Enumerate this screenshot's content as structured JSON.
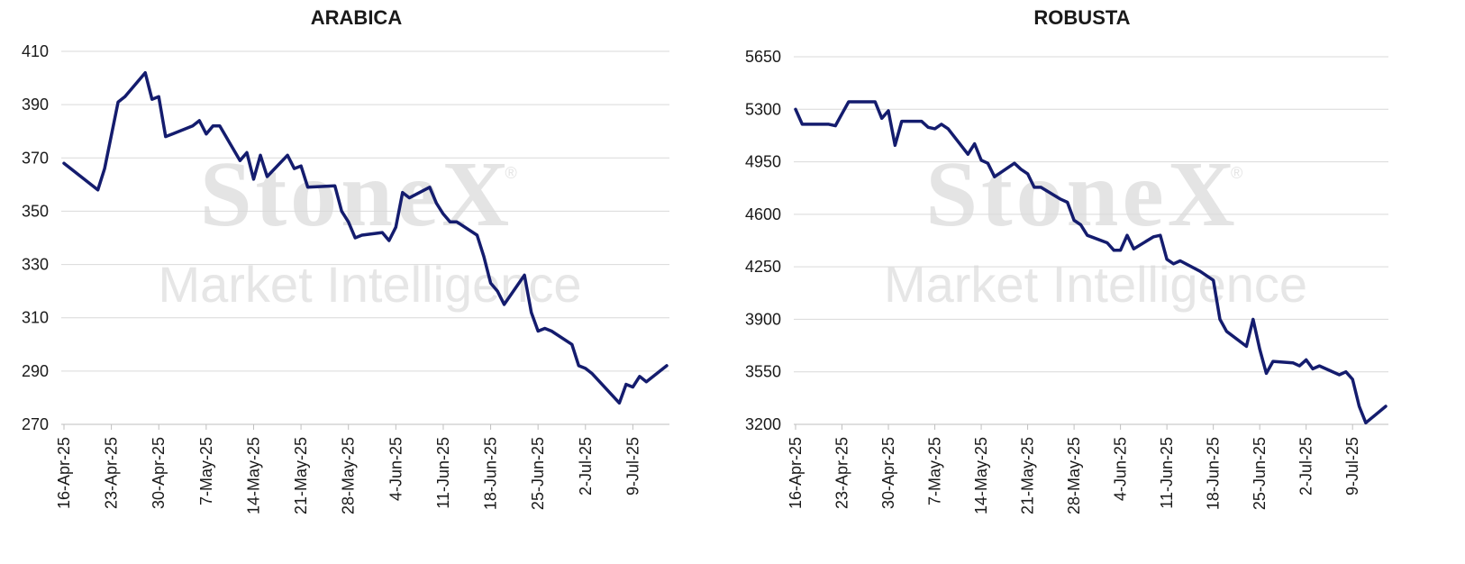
{
  "watermark": {
    "brand": "StoneX",
    "reg": "®",
    "tagline": "Market Intelligence"
  },
  "chart_data": [
    {
      "type": "line",
      "title": "ARABICA",
      "xlabel": "",
      "ylabel": "",
      "ylim": [
        270,
        410
      ],
      "yticks": [
        270,
        290,
        310,
        330,
        350,
        370,
        390,
        410
      ],
      "xticks": [
        "16-Apr-25",
        "23-Apr-25",
        "30-Apr-25",
        "7-May-25",
        "14-May-25",
        "21-May-25",
        "28-May-25",
        "4-Jun-25",
        "11-Jun-25",
        "18-Jun-25",
        "25-Jun-25",
        "2-Jul-25",
        "9-Jul-25"
      ],
      "grid": true,
      "color": "#141c6e",
      "series": [
        {
          "x": [
            "16-Apr-25",
            "21-Apr-25",
            "22-Apr-25",
            "24-Apr-25",
            "25-Apr-25",
            "28-Apr-25",
            "29-Apr-25",
            "30-Apr-25",
            "1-May-25",
            "2-May-25",
            "5-May-25",
            "6-May-25",
            "7-May-25",
            "8-May-25",
            "9-May-25",
            "12-May-25",
            "13-May-25",
            "14-May-25",
            "15-May-25",
            "16-May-25",
            "19-May-25",
            "20-May-25",
            "21-May-25",
            "22-May-25",
            "26-May-25",
            "27-May-25",
            "28-May-25",
            "29-May-25",
            "30-May-25",
            "2-Jun-25",
            "3-Jun-25",
            "4-Jun-25",
            "5-Jun-25",
            "6-Jun-25",
            "9-Jun-25",
            "10-Jun-25",
            "11-Jun-25",
            "12-Jun-25",
            "13-Jun-25",
            "16-Jun-25",
            "17-Jun-25",
            "18-Jun-25",
            "19-Jun-25",
            "20-Jun-25",
            "23-Jun-25",
            "24-Jun-25",
            "25-Jun-25",
            "26-Jun-25",
            "27-Jun-25",
            "30-Jun-25",
            "1-Jul-25",
            "2-Jul-25",
            "3-Jul-25",
            "7-Jul-25",
            "8-Jul-25",
            "9-Jul-25",
            "10-Jul-25",
            "11-Jul-25",
            "14-Jul-25"
          ],
          "y": [
            368,
            358,
            366,
            391,
            393,
            402,
            392,
            393,
            378,
            379,
            382,
            384,
            379,
            382,
            382,
            369,
            372,
            362,
            371,
            363,
            371,
            366,
            367,
            359,
            359.5,
            350,
            346,
            340,
            341,
            342,
            339,
            344,
            357,
            355,
            359,
            353,
            349,
            346,
            346,
            341,
            333,
            323,
            320,
            315,
            326,
            312,
            305,
            306,
            305,
            300,
            292,
            291,
            289,
            278,
            285,
            284,
            288,
            286,
            292
          ]
        }
      ]
    },
    {
      "type": "line",
      "title": "ROBUSTA",
      "xlabel": "",
      "ylabel": "",
      "ylim": [
        3200,
        5650
      ],
      "yticks": [
        3200,
        3550,
        3900,
        4250,
        4600,
        4950,
        5300,
        5650
      ],
      "xticks": [
        "16-Apr-25",
        "23-Apr-25",
        "30-Apr-25",
        "7-May-25",
        "14-May-25",
        "21-May-25",
        "28-May-25",
        "4-Jun-25",
        "11-Jun-25",
        "18-Jun-25",
        "25-Jun-25",
        "2-Jul-25",
        "9-Jul-25"
      ],
      "grid": true,
      "color": "#141c6e",
      "series": [
        {
          "x": [
            "16-Apr-25",
            "17-Apr-25",
            "21-Apr-25",
            "22-Apr-25",
            "23-Apr-25",
            "24-Apr-25",
            "25-Apr-25",
            "28-Apr-25",
            "29-Apr-25",
            "30-Apr-25",
            "1-May-25",
            "2-May-25",
            "5-May-25",
            "6-May-25",
            "7-May-25",
            "8-May-25",
            "9-May-25",
            "12-May-25",
            "13-May-25",
            "14-May-25",
            "15-May-25",
            "16-May-25",
            "19-May-25",
            "20-May-25",
            "21-May-25",
            "22-May-25",
            "23-May-25",
            "26-May-25",
            "27-May-25",
            "28-May-25",
            "29-May-25",
            "30-May-25",
            "2-Jun-25",
            "3-Jun-25",
            "4-Jun-25",
            "5-Jun-25",
            "6-Jun-25",
            "9-Jun-25",
            "10-Jun-25",
            "11-Jun-25",
            "12-Jun-25",
            "13-Jun-25",
            "16-Jun-25",
            "17-Jun-25",
            "18-Jun-25",
            "19-Jun-25",
            "20-Jun-25",
            "23-Jun-25",
            "24-Jun-25",
            "25-Jun-25",
            "26-Jun-25",
            "27-Jun-25",
            "30-Jun-25",
            "1-Jul-25",
            "2-Jul-25",
            "3-Jul-25",
            "4-Jul-25",
            "7-Jul-25",
            "8-Jul-25",
            "9-Jul-25",
            "10-Jul-25",
            "11-Jul-25",
            "14-Jul-25"
          ],
          "y": [
            5300,
            5200,
            5200,
            5190,
            5270,
            5350,
            5350,
            5350,
            5240,
            5290,
            5060,
            5220,
            5220,
            5180,
            5170,
            5200,
            5170,
            5000,
            5070,
            4960,
            4940,
            4850,
            4940,
            4900,
            4870,
            4780,
            4780,
            4700,
            4680,
            4560,
            4530,
            4460,
            4410,
            4360,
            4360,
            4460,
            4370,
            4450,
            4460,
            4300,
            4270,
            4290,
            4220,
            4190,
            4160,
            3900,
            3820,
            3720,
            3900,
            3700,
            3540,
            3620,
            3610,
            3590,
            3630,
            3570,
            3590,
            3530,
            3550,
            3500,
            3320,
            3210,
            3320
          ]
        }
      ]
    }
  ]
}
